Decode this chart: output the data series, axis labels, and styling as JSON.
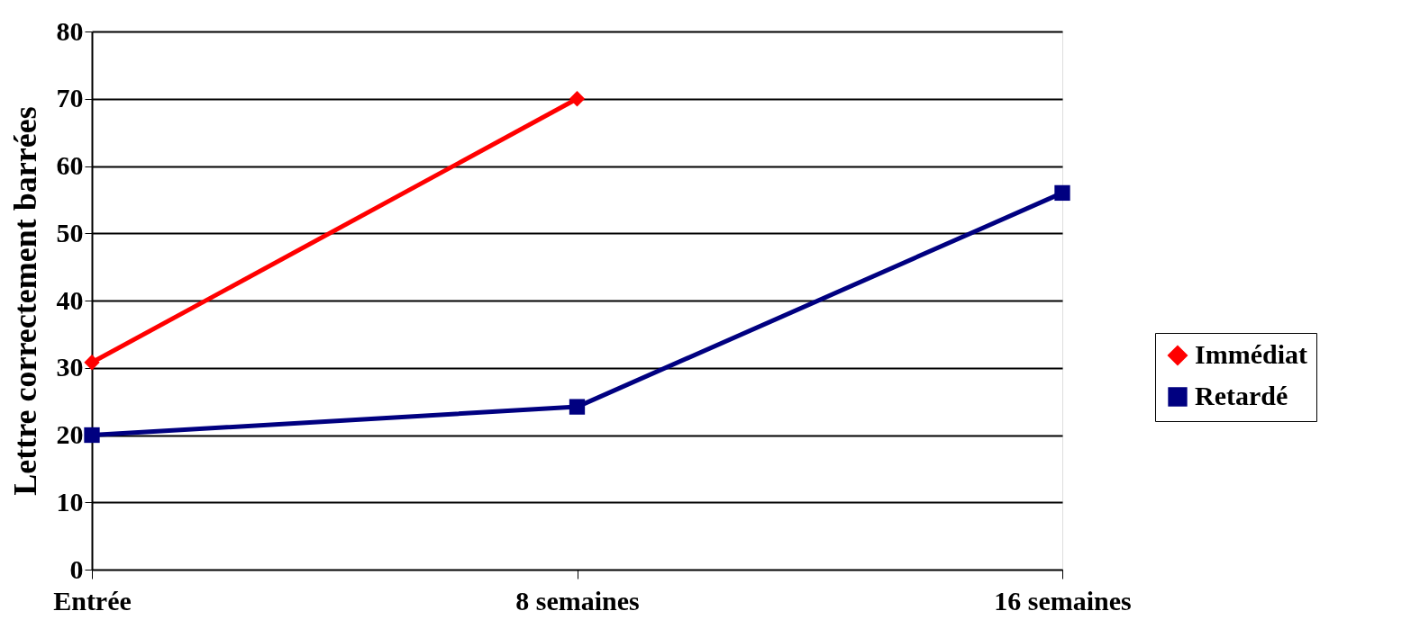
{
  "chart_data": {
    "type": "line",
    "ylabel": "Lettre correctement barrées",
    "categories": [
      "Entrée",
      "8 semaines",
      "16 semaines"
    ],
    "series": [
      {
        "name": "Immédiat",
        "color": "#ff0000",
        "marker": "diamond",
        "values": [
          30.8,
          70,
          null
        ]
      },
      {
        "name": "Retardé",
        "color": "#000080",
        "marker": "square",
        "values": [
          20,
          24.2,
          56
        ]
      }
    ],
    "ylim": [
      0,
      80
    ],
    "yticks": [
      0,
      10,
      20,
      30,
      40,
      50,
      60,
      70,
      80
    ],
    "grid": "y",
    "legend": "right",
    "line_style": "solid"
  }
}
